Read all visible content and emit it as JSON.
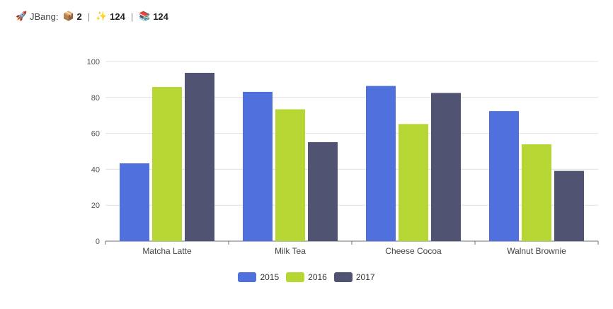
{
  "header": {
    "rocket_icon": "rocket-icon",
    "label": "JBang:",
    "package_icon": "package-icon",
    "package_count": "2",
    "sparkle_icon": "sparkles-icon",
    "sparkle_count": "124",
    "books_icon": "books-icon",
    "books_count": "124",
    "separator": "|"
  },
  "chart_data": {
    "type": "bar",
    "title": "",
    "xlabel": "",
    "ylabel": "",
    "categories": [
      "Matcha Latte",
      "Milk Tea",
      "Cheese Cocoa",
      "Walnut Brownie"
    ],
    "series": [
      {
        "name": "2015",
        "color": "#5070dd",
        "values": [
          43.3,
          83.1,
          86.4,
          72.4
        ]
      },
      {
        "name": "2016",
        "color": "#b6d634",
        "values": [
          85.8,
          73.4,
          65.2,
          53.9
        ]
      },
      {
        "name": "2017",
        "color": "#505372",
        "values": [
          93.7,
          55.1,
          82.5,
          39.1
        ]
      }
    ],
    "ylim": [
      0,
      100
    ],
    "yticks": [
      "0",
      "20",
      "40",
      "60",
      "80",
      "100"
    ],
    "grid": true,
    "legend_position": "bottom-center"
  }
}
